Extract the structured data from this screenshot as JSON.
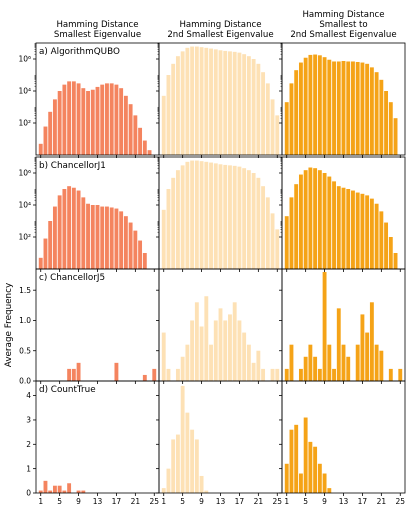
{
  "colors": {
    "c0": "#f4845f",
    "c1": "#fde1b5",
    "c2": "#f5a317"
  },
  "chart_data": [
    {
      "type": "bar",
      "title": "",
      "row_label": "a) AlgorithmQUBO",
      "column_titles": [
        [
          "Hamming Distance",
          "Smallest Eigenvalue"
        ],
        [
          "Hamming Distance",
          "2nd Smallest Eigenvalue"
        ],
        [
          "Hamming Distance",
          "Smallest to",
          "2nd Smallest Eigenvalue"
        ]
      ],
      "ylabel": "",
      "yscale": "log",
      "ylim": [
        1,
        10000000
      ],
      "yticks": [
        100,
        10000,
        1000000
      ],
      "ytick_labels": [
        "10²",
        "10⁴",
        "10⁶"
      ],
      "xlim": [
        0,
        26
      ],
      "xticks": [
        1,
        5,
        9,
        13,
        17,
        21,
        25
      ],
      "x": [
        1,
        2,
        3,
        4,
        5,
        6,
        7,
        8,
        9,
        10,
        11,
        12,
        13,
        14,
        15,
        16,
        17,
        18,
        19,
        20,
        21,
        22,
        23,
        24,
        25
      ],
      "series": [
        {
          "values": [
            5,
            60,
            500,
            3000,
            10000,
            25000,
            40000,
            40000,
            30000,
            15000,
            10000,
            12000,
            18000,
            25000,
            30000,
            30000,
            25000,
            15000,
            5000,
            1500,
            300,
            50,
            8,
            2,
            1
          ]
        },
        {
          "values": [
            5000,
            100000,
            500000,
            1500000,
            3000000,
            5000000,
            6000000,
            6000000,
            5500000,
            5000000,
            4500000,
            4000000,
            3500000,
            3200000,
            3000000,
            2800000,
            2500000,
            2000000,
            1500000,
            1000000,
            500000,
            150000,
            30000,
            3000,
            300
          ]
        },
        {
          "values": [
            2000,
            30000,
            200000,
            600000,
            1200000,
            1800000,
            1900000,
            1700000,
            1300000,
            900000,
            700000,
            700000,
            750000,
            700000,
            700000,
            650000,
            600000,
            500000,
            300000,
            150000,
            50000,
            10000,
            2000,
            200,
            1
          ]
        }
      ]
    },
    {
      "type": "bar",
      "title": "",
      "row_label": "b) ChancellorJ1",
      "ylabel": "",
      "yscale": "log",
      "ylim": [
        1,
        10000000
      ],
      "yticks": [
        100,
        10000,
        1000000
      ],
      "ytick_labels": [
        "10²",
        "10⁴",
        "10⁶"
      ],
      "xlim": [
        0,
        26
      ],
      "xticks": [
        1,
        5,
        9,
        13,
        17,
        21,
        25
      ],
      "x": [
        1,
        2,
        3,
        4,
        5,
        6,
        7,
        8,
        9,
        10,
        11,
        12,
        13,
        14,
        15,
        16,
        17,
        18,
        19,
        20,
        21,
        22,
        23,
        24,
        25
      ],
      "series": [
        {
          "values": [
            5,
            80,
            1000,
            8000,
            40000,
            100000,
            150000,
            120000,
            80000,
            30000,
            12000,
            10000,
            10000,
            8000,
            8000,
            7000,
            6000,
            4000,
            2000,
            800,
            250,
            60,
            10,
            1,
            1
          ]
        },
        {
          "values": [
            5000,
            100000,
            500000,
            1500000,
            3000000,
            5000000,
            6000000,
            6000000,
            5500000,
            5000000,
            4500000,
            4000000,
            3500000,
            3200000,
            3000000,
            2800000,
            2500000,
            2000000,
            1500000,
            1000000,
            500000,
            150000,
            30000,
            3000,
            300
          ]
        },
        {
          "values": [
            2000,
            30000,
            200000,
            800000,
            1500000,
            2200000,
            2000000,
            1500000,
            1000000,
            600000,
            300000,
            150000,
            120000,
            100000,
            80000,
            60000,
            50000,
            40000,
            25000,
            12000,
            4000,
            800,
            100,
            10,
            1
          ]
        }
      ]
    },
    {
      "type": "bar",
      "title": "",
      "row_label": "c) ChancellorJ5",
      "ylabel": "Average Frequency",
      "yscale": "linear",
      "ylim": [
        0,
        1.85
      ],
      "yticks": [
        0,
        0.5,
        1.0,
        1.5
      ],
      "ytick_labels": [
        "0.0",
        "0.5",
        "1.0",
        "1.5"
      ],
      "xlim": [
        0,
        26
      ],
      "xticks": [
        1,
        5,
        9,
        13,
        17,
        21,
        25
      ],
      "x": [
        1,
        2,
        3,
        4,
        5,
        6,
        7,
        8,
        9,
        10,
        11,
        12,
        13,
        14,
        15,
        16,
        17,
        18,
        19,
        20,
        21,
        22,
        23,
        24,
        25
      ],
      "series": [
        {
          "values": [
            0,
            0,
            0,
            0,
            0,
            0,
            0.2,
            0.2,
            0.3,
            0,
            0,
            0,
            0,
            0,
            0,
            0,
            0.3,
            0,
            0,
            0,
            0,
            0,
            0.1,
            0,
            0.2
          ]
        },
        {
          "values": [
            0.8,
            0.2,
            0,
            0.2,
            0.4,
            0.6,
            1.0,
            1.3,
            0.9,
            1.4,
            0.6,
            1.0,
            1.2,
            1.0,
            1.1,
            1.3,
            1.0,
            0.8,
            0.6,
            0.3,
            0.5,
            0.2,
            0,
            0.2,
            0.2
          ]
        },
        {
          "values": [
            0.2,
            0.6,
            0,
            0.2,
            0.4,
            0.6,
            0.4,
            0.2,
            1.8,
            0.6,
            0.2,
            1.2,
            0.6,
            0.4,
            0,
            0.6,
            1.1,
            0.8,
            1.3,
            0.6,
            0.5,
            0,
            0.2,
            0,
            0.2
          ]
        }
      ]
    },
    {
      "type": "bar",
      "title": "",
      "row_label": "d) CountTrue",
      "ylabel": "",
      "yscale": "linear",
      "ylim": [
        0,
        4.6
      ],
      "yticks": [
        0,
        1,
        2,
        3,
        4
      ],
      "ytick_labels": [
        "0",
        "1",
        "2",
        "3",
        "4"
      ],
      "xlim": [
        0,
        26
      ],
      "xticks": [
        1,
        5,
        9,
        13,
        17,
        21,
        25
      ],
      "xtick_labels": [
        "1",
        "5",
        "9",
        "13",
        "17",
        "21",
        "25"
      ],
      "x": [
        1,
        2,
        3,
        4,
        5,
        6,
        7,
        8,
        9,
        10,
        11,
        12,
        13,
        14,
        15,
        16,
        17,
        18,
        19,
        20,
        21,
        22,
        23,
        24,
        25
      ],
      "series": [
        {
          "values": [
            0.1,
            0.5,
            0.1,
            0.3,
            0.3,
            0.1,
            0.4,
            0,
            0.1,
            0.1,
            0,
            0,
            0,
            0,
            0,
            0,
            0,
            0,
            0,
            0,
            0,
            0,
            0,
            0,
            0
          ]
        },
        {
          "values": [
            0.2,
            1.0,
            2.2,
            2.4,
            4.4,
            3.3,
            2.6,
            2.2,
            0.7,
            0.1,
            0,
            0,
            0,
            0,
            0,
            0,
            0,
            0,
            0,
            0,
            0,
            0,
            0,
            0,
            0
          ]
        },
        {
          "values": [
            1.2,
            2.6,
            2.8,
            0.8,
            3.1,
            2.1,
            1.9,
            1.2,
            0.8,
            0.2,
            0,
            0,
            0,
            0,
            0,
            0,
            0,
            0,
            0,
            0,
            0,
            0,
            0,
            0,
            0
          ]
        }
      ]
    }
  ]
}
